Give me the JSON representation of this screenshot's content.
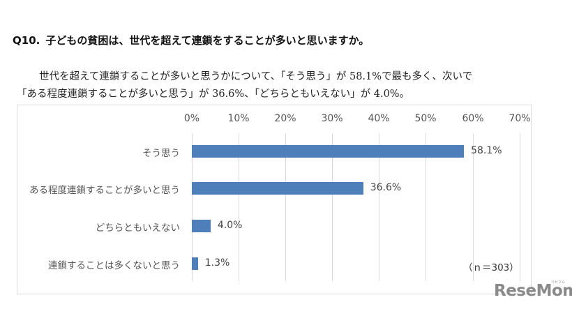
{
  "header": {
    "question_number": "Q10.",
    "question_text": "子どもの貧困は、世代を超えて連鎖をすることが多いと思いますか。"
  },
  "summary": {
    "line1": "世代を超えて連鎖することが多いと思うかについて、「そう思う」が 58.1%で最も多く、次いで",
    "line2": "「ある程度連鎖することが多いと思う」が 36.6%、「どちらともいえない」が 4.0%。"
  },
  "chart_data": {
    "type": "bar",
    "orientation": "horizontal",
    "title": "子どもの貧困は、世代を超えて連鎖をすることが多いと思いますか。",
    "categories": [
      "そう思う",
      "ある程度連鎖することが多いと思う",
      "どちらともいえない",
      "連鎖することは多くないと思う"
    ],
    "values": [
      58.1,
      36.6,
      4.0,
      1.3
    ],
    "value_labels": [
      "58.1%",
      "36.6%",
      "4.0%",
      "1.3%"
    ],
    "xlabel": "",
    "ylabel": "",
    "xlim": [
      0,
      70
    ],
    "x_ticks": [
      "0%",
      "10%",
      "20%",
      "30%",
      "40%",
      "50%",
      "60%",
      "70%"
    ],
    "x_axis_position": "top",
    "grid": true,
    "legend": null,
    "bar_color": "#4f7fba",
    "annotation": "（ｎ＝303）"
  },
  "watermark": {
    "text": "ReseMom",
    "kana": "リセマム"
  }
}
